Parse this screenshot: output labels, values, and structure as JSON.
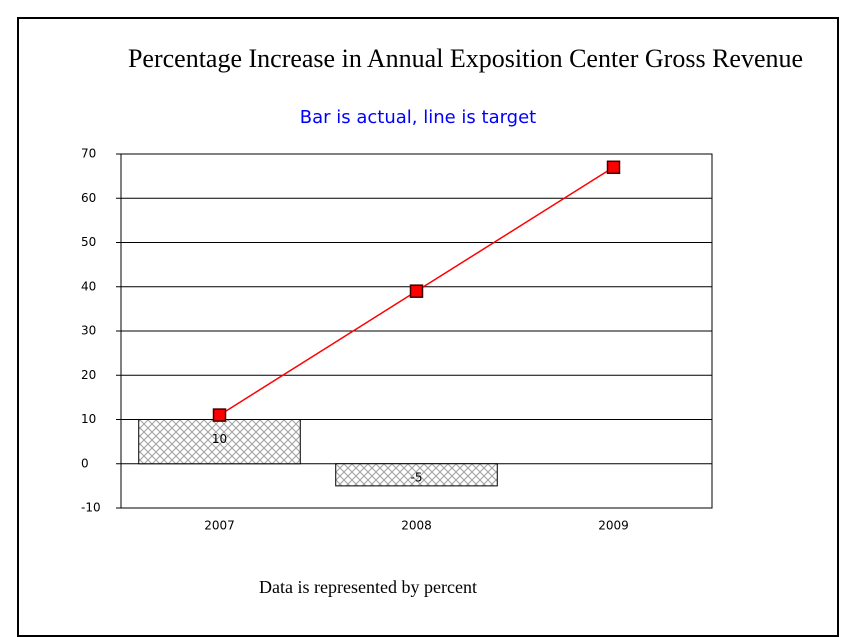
{
  "chart_data": {
    "type": "bar-line",
    "title": "Percentage Increase in Annual Exposition Center Gross Revenue",
    "subtitle": "Bar is actual, line is target",
    "footer": "Data is represented by percent",
    "categories": [
      "2007",
      "2008",
      "2009"
    ],
    "series": [
      {
        "type": "bar",
        "color": "#c0c0c0",
        "values": [
          10,
          -5,
          null
        ]
      },
      {
        "type": "line",
        "color": "#ff0000",
        "values": [
          11,
          39,
          67
        ]
      }
    ],
    "ylim": [
      -10,
      70
    ],
    "yticks": [
      -10,
      0,
      10,
      20,
      30,
      40,
      50,
      60,
      70
    ],
    "grid": true
  }
}
